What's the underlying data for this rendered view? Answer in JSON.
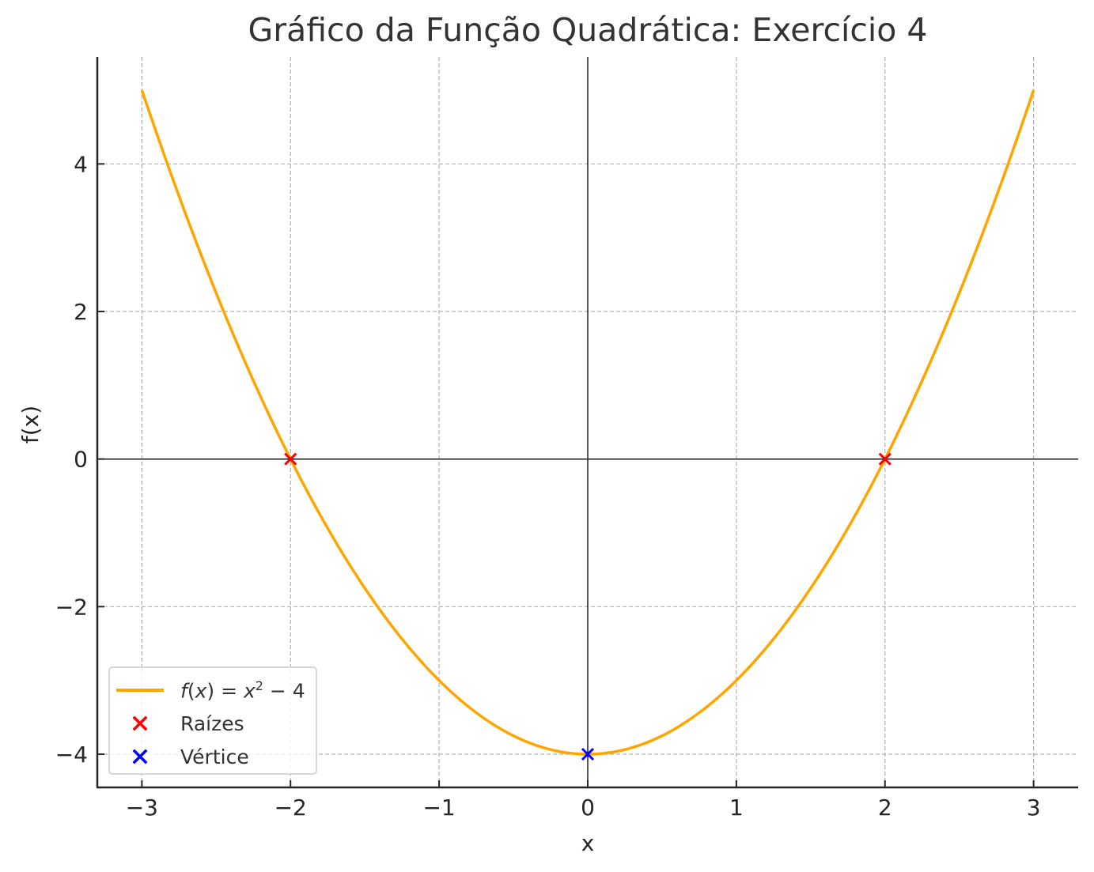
{
  "chart_data": {
    "type": "line",
    "title": "Gráfico da Função Quadrática: Exercício 4",
    "xlabel": "x",
    "ylabel": "f(x)",
    "xlim": [
      -3.3,
      3.3
    ],
    "ylim": [
      -4.45,
      5.45
    ],
    "grid": true,
    "legend_position": "lower left",
    "x_ticks": [
      "−3",
      "−2",
      "−1",
      "0",
      "1",
      "2",
      "3"
    ],
    "y_ticks": [
      "−4",
      "−2",
      "0",
      "2",
      "4"
    ],
    "function": "f(x) = x^2 - 4",
    "series": [
      {
        "name": "f(x) = x² − 4",
        "kind": "line",
        "color": "#FFA500",
        "x": [
          -3,
          -2.5,
          -2,
          -1.5,
          -1,
          -0.5,
          0,
          0.5,
          1,
          1.5,
          2,
          2.5,
          3
        ],
        "y": [
          5,
          2.25,
          0,
          -1.75,
          -3,
          -3.75,
          -4,
          -3.75,
          -3,
          -1.75,
          0,
          2.25,
          5
        ]
      },
      {
        "name": "Raízes",
        "kind": "scatter",
        "marker": "x",
        "color": "#FF0000",
        "x": [
          -2,
          2
        ],
        "y": [
          0,
          0
        ]
      },
      {
        "name": "Vértice",
        "kind": "scatter",
        "marker": "x",
        "color": "#0000FF",
        "x": [
          0
        ],
        "y": [
          -4
        ]
      }
    ]
  },
  "legend": {
    "items": [
      {
        "label_prefix": "f",
        "label_paren_open": "(",
        "label_var": "x",
        "label_paren_close": ")",
        "label_eq": " = ",
        "label_base": "x",
        "label_exp": "2",
        "label_tail": " − 4",
        "color": "#FFA500"
      },
      {
        "label": "Raízes",
        "color": "#FF0000"
      },
      {
        "label": "Vértice",
        "color": "#0000FF"
      }
    ]
  }
}
